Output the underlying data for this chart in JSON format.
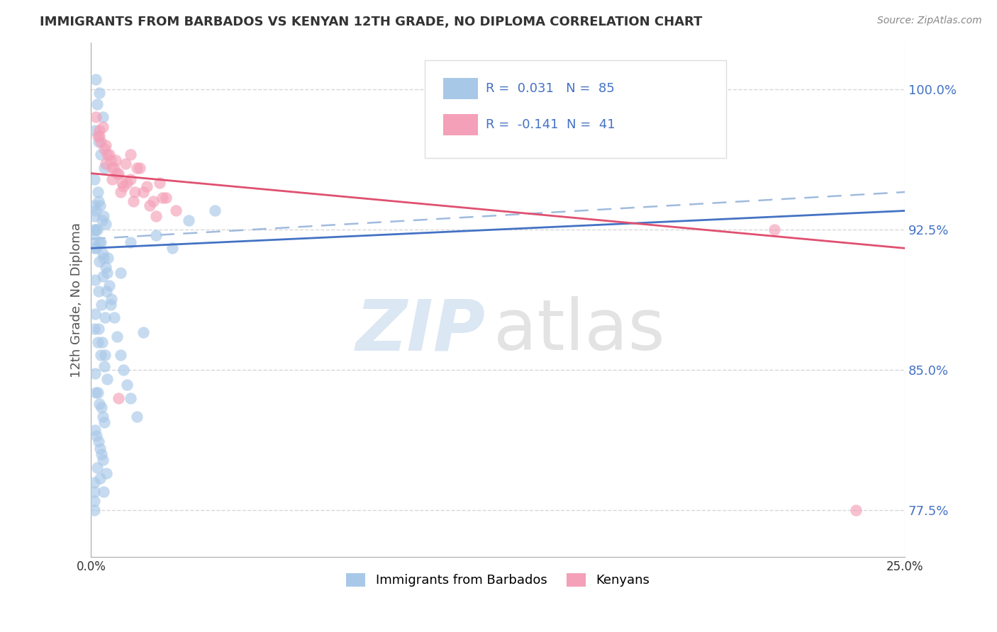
{
  "title": "IMMIGRANTS FROM BARBADOS VS KENYAN 12TH GRADE, NO DIPLOMA CORRELATION CHART",
  "source": "Source: ZipAtlas.com",
  "ylabel": "12th Grade, No Diploma",
  "xlim": [
    0.0,
    25.0
  ],
  "ylim": [
    75.0,
    102.5
  ],
  "yticks": [
    77.5,
    85.0,
    92.5,
    100.0
  ],
  "ytick_labels": [
    "77.5%",
    "85.0%",
    "92.5%",
    "100.0%"
  ],
  "blue_R": 0.031,
  "blue_N": 85,
  "pink_R": -0.141,
  "pink_N": 41,
  "blue_color": "#A8C8E8",
  "pink_color": "#F4A0B8",
  "blue_line_color": "#4472C4",
  "pink_line_color": "#E05070",
  "dash_color": "#90B0D8",
  "legend_labels": [
    "Immigrants from Barbados",
    "Kenyans"
  ],
  "blue_scatter_x": [
    0.15,
    0.25,
    0.18,
    0.35,
    0.12,
    0.22,
    0.3,
    0.4,
    0.1,
    0.2,
    0.28,
    0.38,
    0.15,
    0.25,
    0.35,
    0.45,
    0.12,
    0.22,
    0.32,
    0.42,
    0.1,
    0.2,
    0.3,
    0.4,
    0.5,
    0.15,
    0.25,
    0.35,
    0.12,
    0.22,
    0.32,
    0.18,
    0.28,
    0.38,
    0.14,
    0.24,
    0.34,
    0.44,
    0.16,
    0.26,
    0.36,
    0.46,
    0.13,
    0.23,
    0.33,
    0.43,
    0.11,
    0.21,
    0.31,
    0.41,
    0.51,
    0.17,
    0.27,
    0.37,
    0.47,
    0.19,
    0.29,
    0.39,
    0.49,
    0.55,
    0.62,
    0.7,
    0.8,
    0.9,
    1.0,
    1.1,
    1.2,
    1.4,
    1.6,
    2.0,
    2.5,
    3.0,
    0.1,
    0.1,
    0.1,
    0.1,
    0.1,
    0.1,
    0.1,
    0.1,
    0.1,
    3.8,
    1.2,
    0.9,
    0.6
  ],
  "blue_scatter_y": [
    100.5,
    99.8,
    99.2,
    98.5,
    97.8,
    97.2,
    96.5,
    95.8,
    95.2,
    94.5,
    93.8,
    93.2,
    92.5,
    91.8,
    91.2,
    90.5,
    89.8,
    89.2,
    88.5,
    87.8,
    87.2,
    86.5,
    85.8,
    85.2,
    84.5,
    83.8,
    83.2,
    82.5,
    81.8,
    81.2,
    80.5,
    79.8,
    79.2,
    78.5,
    93.5,
    94.0,
    93.0,
    92.8,
    91.5,
    90.8,
    90.0,
    89.2,
    88.0,
    87.2,
    86.5,
    85.8,
    84.8,
    83.8,
    83.0,
    82.2,
    91.0,
    81.5,
    80.8,
    80.2,
    79.5,
    92.5,
    91.8,
    91.0,
    90.2,
    89.5,
    88.8,
    87.8,
    86.8,
    85.8,
    85.0,
    84.2,
    83.5,
    82.5,
    87.0,
    92.2,
    91.5,
    93.0,
    93.8,
    93.2,
    92.5,
    92.0,
    91.5,
    79.0,
    78.5,
    78.0,
    77.5,
    93.5,
    91.8,
    90.2,
    88.5
  ],
  "pink_scatter_x": [
    0.15,
    0.25,
    0.35,
    0.45,
    0.55,
    0.65,
    0.75,
    0.85,
    0.95,
    1.05,
    1.2,
    1.35,
    1.5,
    1.7,
    1.9,
    2.1,
    2.3,
    2.6,
    0.2,
    0.4,
    0.6,
    0.8,
    1.0,
    1.2,
    1.4,
    1.6,
    1.8,
    2.0,
    2.2,
    0.3,
    0.5,
    0.7,
    0.9,
    1.1,
    1.3,
    0.25,
    0.45,
    0.65,
    0.85,
    23.5,
    21.0
  ],
  "pink_scatter_y": [
    98.5,
    97.5,
    98.0,
    97.0,
    96.5,
    95.8,
    96.2,
    95.5,
    95.0,
    96.0,
    95.2,
    94.5,
    95.8,
    94.8,
    94.0,
    95.0,
    94.2,
    93.5,
    97.5,
    96.8,
    96.2,
    95.5,
    94.8,
    96.5,
    95.8,
    94.5,
    93.8,
    93.2,
    94.2,
    97.2,
    96.5,
    95.8,
    94.5,
    95.0,
    94.0,
    97.8,
    96.0,
    95.2,
    83.5,
    77.5,
    92.5
  ],
  "blue_trendline_x0": 0.0,
  "blue_trendline_y0": 91.5,
  "blue_trendline_x1": 25.0,
  "blue_trendline_y1": 93.5,
  "pink_trendline_x0": 0.0,
  "pink_trendline_y0": 95.5,
  "pink_trendline_x1": 25.0,
  "pink_trendline_y1": 91.5,
  "dash_trendline_x0": 0.0,
  "dash_trendline_y0": 92.0,
  "dash_trendline_x1": 25.0,
  "dash_trendline_y1": 94.5
}
